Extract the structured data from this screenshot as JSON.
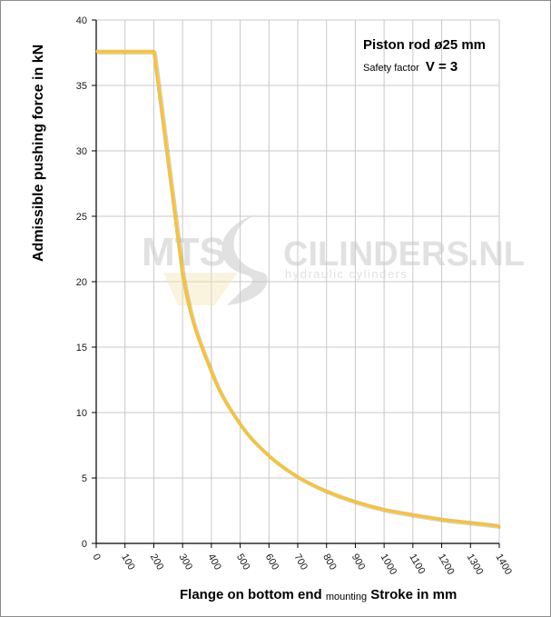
{
  "chart_data": {
    "type": "line",
    "ylabel": "Admissible pushing  force in kN",
    "xlabel_main": "Flange on bottom end",
    "xlabel_sub": "mounting",
    "xlabel_unit": "Stroke in mm",
    "annotation_title": "Piston rod ø25 mm",
    "annotation_safety_label": "Safety factor",
    "annotation_safety_value": "V = 3",
    "xlim": [
      0,
      1400
    ],
    "ylim": [
      0,
      40
    ],
    "grid": true,
    "x_ticks": [
      "0",
      "100",
      "200",
      "300",
      "400",
      "500",
      "600",
      "700",
      "800",
      "900",
      "1000",
      "1100",
      "1200",
      "1300",
      "1400"
    ],
    "y_ticks": [
      "0",
      "5",
      "10",
      "15",
      "20",
      "25",
      "30",
      "35",
      "40"
    ],
    "series": [
      {
        "color": "#f5c33b",
        "x": [
          0,
          200,
          300,
          400,
          500,
          600,
          700,
          800,
          900,
          1000,
          1100,
          1200,
          1300,
          1400
        ],
        "y": [
          37.6,
          37.6,
          20.5,
          13.1,
          9.1,
          6.7,
          5.1,
          4.0,
          3.2,
          2.6,
          2.2,
          1.85,
          1.6,
          1.35
        ]
      }
    ]
  },
  "watermark": {
    "brand_left": "MTS",
    "brand_right": "CILINDERS.NL",
    "tagline": "hydraulic  cylinders"
  },
  "colors": {
    "line": "#f5c33b",
    "grid": "#c8c8c8",
    "axis": "#000000",
    "watermark": "#c9c9c9",
    "watermark_accent": "#f3e2b0"
  }
}
